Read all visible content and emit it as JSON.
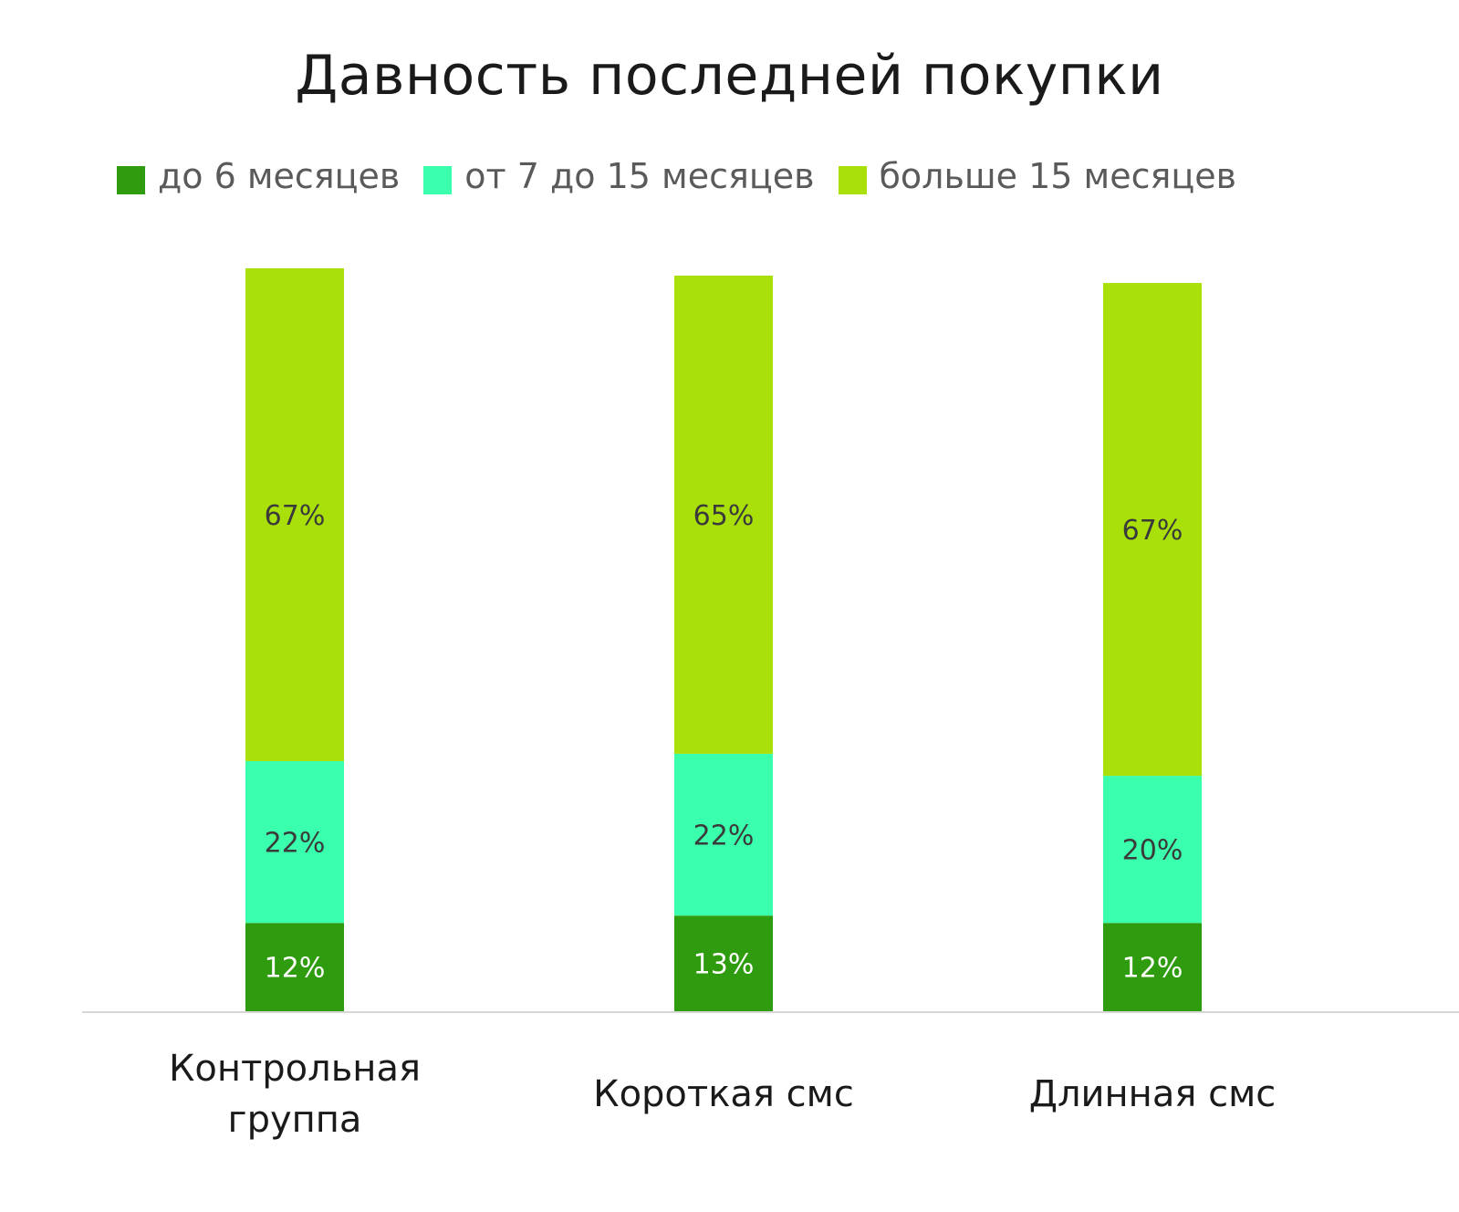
{
  "chart_data": {
    "type": "bar",
    "stacked": true,
    "title": "Давность последней покупки",
    "legend_position": "top",
    "grid": false,
    "categories": [
      [
        "Контрольная",
        "группа"
      ],
      [
        "Короткая смс"
      ],
      [
        "Длинная смс"
      ]
    ],
    "series": [
      {
        "name": "до 6 месяцев",
        "color": "#2e9c0e",
        "label_color": "#ffffff",
        "values": [
          12,
          13,
          12
        ],
        "labels": [
          "12%",
          "13%",
          "12%"
        ]
      },
      {
        "name": "от 7 до 15 месяцев",
        "color": "#3affad",
        "label_color": "#3a3a3a",
        "values": [
          22,
          22,
          20
        ],
        "labels": [
          "22%",
          "22%",
          "20%"
        ]
      },
      {
        "name": "больше 15 месяцев",
        "color": "#aae00a",
        "label_color": "#3a3a3a",
        "values": [
          67,
          65,
          67
        ],
        "labels": [
          "67%",
          "65%",
          "67%"
        ]
      }
    ]
  }
}
